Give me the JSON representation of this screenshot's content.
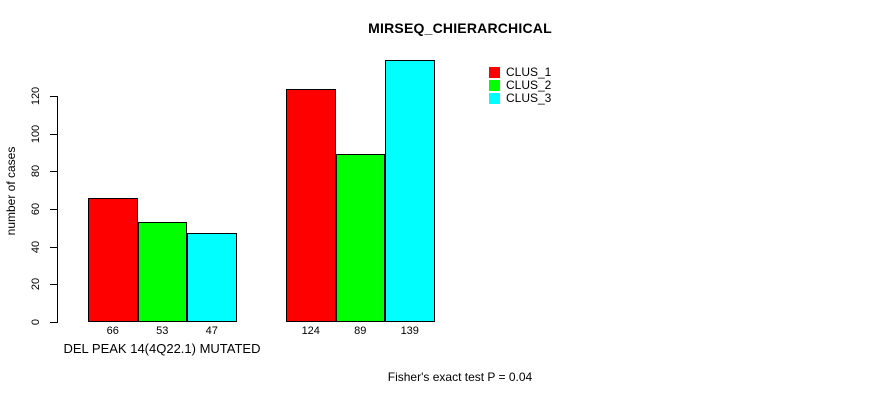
{
  "chart_data": {
    "type": "bar",
    "title": "MIRSEQ_CHIERARCHICAL",
    "ylabel": "number of cases",
    "xlabel": "",
    "annotation": "Fisher's exact test P = 0.04",
    "categories": [
      "DEL PEAK 14(4Q22.1) MUTATED",
      ""
    ],
    "series": [
      {
        "name": "CLUS_1",
        "color": "#ff0000",
        "values": [
          66,
          124
        ]
      },
      {
        "name": "CLUS_2",
        "color": "#00ff00",
        "values": [
          53,
          89
        ]
      },
      {
        "name": "CLUS_3",
        "color": "#00ffff",
        "values": [
          47,
          139
        ]
      }
    ],
    "bar_value_labels": [
      [
        66,
        53,
        47
      ],
      [
        124,
        89,
        139
      ]
    ],
    "yticks": [
      0,
      20,
      40,
      60,
      80,
      100,
      120
    ],
    "ylim": [
      0,
      139
    ],
    "grid": false,
    "legend_position": "top-right",
    "axis_color": "#000000",
    "bar_border_color": "#000000"
  }
}
